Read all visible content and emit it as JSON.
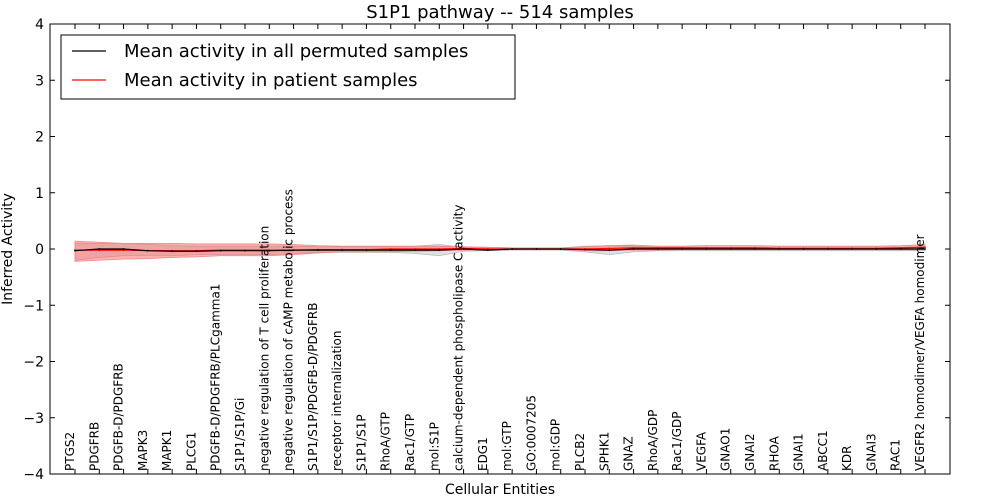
{
  "chart_data": {
    "type": "line",
    "title": "S1P1 pathway -- 514 samples",
    "xlabel": "Cellular Entities",
    "ylabel": "Inferred Activity",
    "ylim": [
      -4,
      4
    ],
    "yticks": [
      4,
      3,
      2,
      1,
      0,
      -1,
      -2,
      -3,
      -4
    ],
    "ytick_labels": [
      "4",
      "3",
      "2",
      "1",
      "0",
      "−1",
      "−2",
      "−3",
      "−4"
    ],
    "grid": false,
    "legend_position": "top-left",
    "categories": [
      "PTGS2",
      "PDGFRB",
      "PDGFB-D/PDGFRB",
      "MAPK3",
      "MAPK1",
      "PLCG1",
      "PDGFB-D/PDGFRB/PLCgamma1",
      "S1P1/S1P/Gi",
      "negative regulation of T cell proliferation",
      "negative regulation of cAMP metabolic process",
      "S1P1/S1P/PDGFB-D/PDGFRB",
      "receptor internalization",
      "S1P1/S1P",
      "RhoA/GTP",
      "Rac1/GTP",
      "mol:S1P",
      "calcium-dependent phospholipase C activity",
      "EDG1",
      "mol:GTP",
      "GO:0007205",
      "mol:GDP",
      "PLCB2",
      "SPHK1",
      "GNAZ",
      "RhoA/GDP",
      "Rac1/GDP",
      "VEGFA",
      "GNAO1",
      "GNAI2",
      "RHOA",
      "GNAI1",
      "ABCC1",
      "KDR",
      "GNAI3",
      "RAC1",
      "VEGFR2 homodimer/VEGFA homodimer"
    ],
    "series": [
      {
        "name": "Mean activity in all permuted samples",
        "color": "#000000",
        "values": [
          -0.03,
          0.0,
          0.0,
          -0.03,
          -0.04,
          -0.04,
          -0.03,
          -0.03,
          -0.03,
          -0.02,
          -0.02,
          -0.02,
          -0.02,
          -0.02,
          -0.02,
          -0.02,
          0.0,
          -0.02,
          0.0,
          0.0,
          0.0,
          -0.01,
          -0.02,
          0.0,
          0.0,
          0.0,
          0.0,
          0.0,
          0.0,
          0.0,
          0.0,
          0.0,
          0.0,
          0.0,
          0.0,
          0.0
        ],
        "band_lower": [
          -0.2,
          -0.15,
          -0.12,
          -0.12,
          -0.12,
          -0.1,
          -0.1,
          -0.1,
          -0.1,
          -0.08,
          -0.06,
          -0.06,
          -0.06,
          -0.06,
          -0.08,
          -0.12,
          -0.04,
          -0.03,
          -0.02,
          -0.02,
          -0.02,
          -0.05,
          -0.1,
          -0.05,
          -0.03,
          -0.03,
          -0.03,
          -0.03,
          -0.03,
          -0.03,
          -0.03,
          -0.03,
          -0.03,
          -0.03,
          -0.03,
          -0.03
        ],
        "band_upper": [
          0.1,
          0.1,
          0.1,
          0.08,
          0.06,
          0.05,
          0.05,
          0.05,
          0.05,
          0.05,
          0.04,
          0.04,
          0.04,
          0.04,
          0.05,
          0.08,
          0.03,
          0.03,
          0.02,
          0.02,
          0.02,
          0.05,
          0.06,
          0.05,
          0.03,
          0.03,
          0.03,
          0.03,
          0.03,
          0.03,
          0.03,
          0.03,
          0.03,
          0.03,
          0.03,
          0.05
        ]
      },
      {
        "name": "Mean activity in patient samples",
        "color": "#ff0000",
        "values": [
          -0.02,
          -0.02,
          -0.02,
          -0.03,
          -0.03,
          -0.03,
          -0.02,
          -0.02,
          -0.02,
          -0.02,
          -0.01,
          -0.01,
          -0.01,
          0.0,
          0.0,
          0.0,
          0.01,
          0.0,
          0.0,
          0.0,
          0.0,
          0.0,
          0.01,
          0.02,
          0.02,
          0.02,
          0.02,
          0.02,
          0.02,
          0.01,
          0.01,
          0.01,
          0.01,
          0.01,
          0.02,
          0.03
        ],
        "band_lower": [
          -0.22,
          -0.2,
          -0.18,
          -0.17,
          -0.15,
          -0.14,
          -0.12,
          -0.12,
          -0.12,
          -0.1,
          -0.07,
          -0.05,
          -0.05,
          -0.05,
          -0.04,
          -0.03,
          -0.02,
          -0.02,
          -0.01,
          -0.01,
          -0.01,
          -0.03,
          -0.03,
          -0.02,
          -0.02,
          -0.01,
          -0.01,
          -0.01,
          -0.01,
          -0.01,
          -0.01,
          -0.01,
          -0.01,
          -0.01,
          -0.01,
          -0.01
        ],
        "band_upper": [
          0.14,
          0.12,
          0.1,
          0.1,
          0.1,
          0.09,
          0.09,
          0.09,
          0.09,
          0.08,
          0.06,
          0.05,
          0.05,
          0.05,
          0.05,
          0.05,
          0.04,
          0.03,
          0.02,
          0.02,
          0.02,
          0.04,
          0.06,
          0.07,
          0.05,
          0.05,
          0.06,
          0.06,
          0.06,
          0.05,
          0.05,
          0.05,
          0.05,
          0.05,
          0.06,
          0.08
        ]
      }
    ]
  }
}
